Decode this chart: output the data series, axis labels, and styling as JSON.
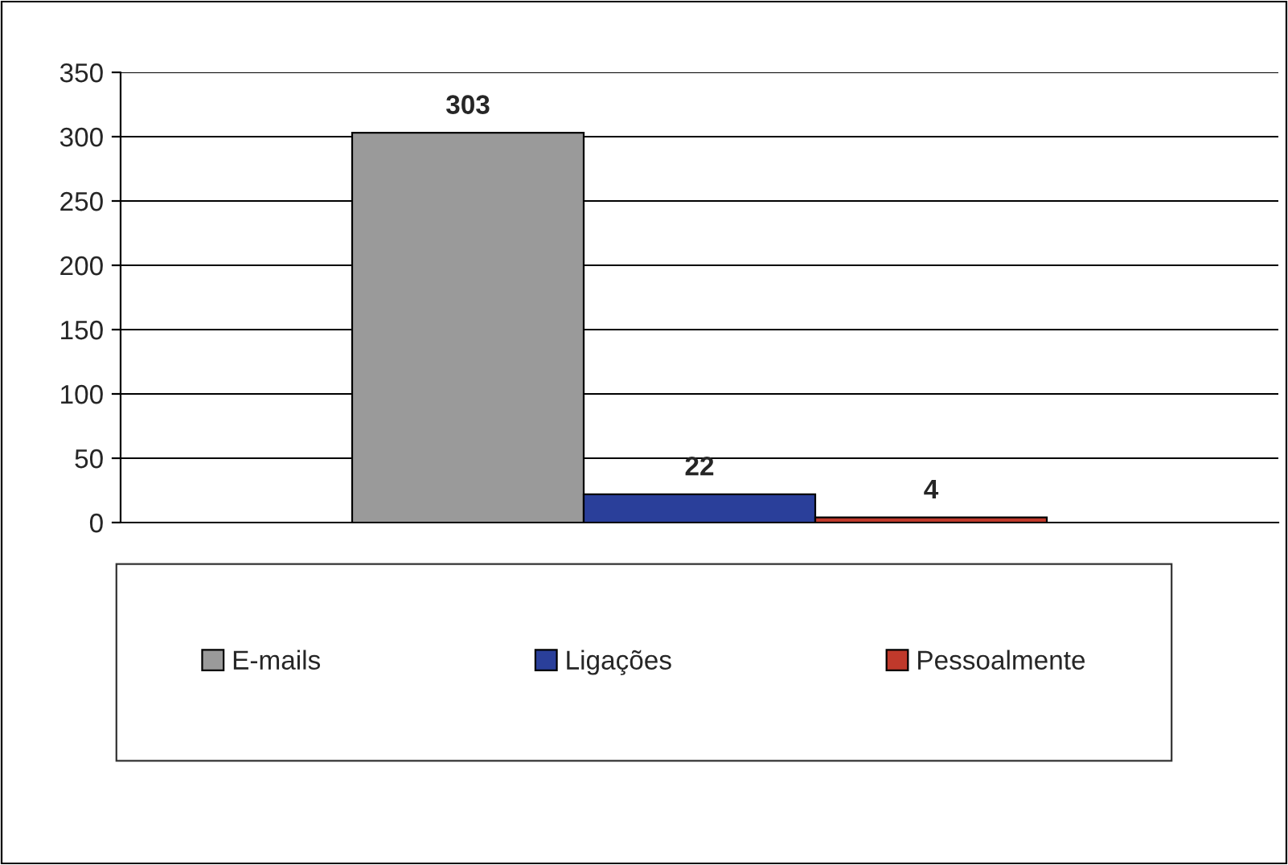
{
  "chart_data": {
    "type": "bar",
    "categories": [
      null
    ],
    "series": [
      {
        "name": "E-mails",
        "color": "#9a9a9a",
        "values": [
          303
        ]
      },
      {
        "name": "Ligações",
        "color": "#2a3f9a",
        "values": [
          22
        ]
      },
      {
        "name": "Pessoalmente",
        "color": "#c0392b",
        "values": [
          4
        ]
      }
    ],
    "ylim": [
      0,
      350
    ],
    "yticks": [
      0,
      50,
      100,
      150,
      200,
      250,
      300,
      350
    ],
    "grid": "y",
    "legend": "bottom",
    "data_labels": true
  }
}
